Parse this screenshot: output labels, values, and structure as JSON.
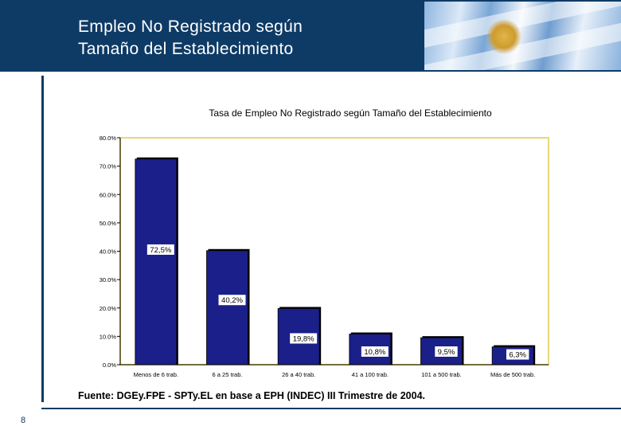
{
  "header": {
    "title_line1": "Empleo No Registrado según",
    "title_line2": "Tamaño del  Establecimiento"
  },
  "page_number": "8",
  "source": "Fuente: DGEy.FPE - SPTy.EL en base a EPH (INDEC) III Trimestre de 2004.",
  "colors": {
    "header_bg": "#0e3b66",
    "plot_bg": "#ffffff",
    "plot_border": "#e8d77a",
    "bar_fill": "#1b1f8a",
    "bar_shadow": "#000000"
  },
  "chart_data": {
    "type": "bar",
    "title": "Tasa de Empleo No Registrado según Tamaño del Establecimiento",
    "xlabel": "",
    "ylabel": "",
    "ylim": [
      0,
      80
    ],
    "ytick_values": [
      0,
      10,
      20,
      30,
      40,
      50,
      60,
      70,
      80
    ],
    "ytick_labels": [
      "0.0%",
      "10.0%",
      "20.0%",
      "30.0%",
      "40.0%",
      "50.0%",
      "60.0%",
      "70.0%",
      "80.0%"
    ],
    "grid": false,
    "legend": "none",
    "categories": [
      "Menos de 6 trab.",
      "6 a 25 trab.",
      "26 a 40 trab.",
      "41 a 100 trab.",
      "101 a 500 trab.",
      "Más de 500 trab."
    ],
    "values": [
      72.5,
      40.2,
      19.8,
      10.8,
      9.5,
      6.3
    ],
    "data_labels": [
      "72,5%",
      "40,2%",
      "19,8%",
      "10,8%",
      "9,5%",
      "6,3%"
    ]
  }
}
